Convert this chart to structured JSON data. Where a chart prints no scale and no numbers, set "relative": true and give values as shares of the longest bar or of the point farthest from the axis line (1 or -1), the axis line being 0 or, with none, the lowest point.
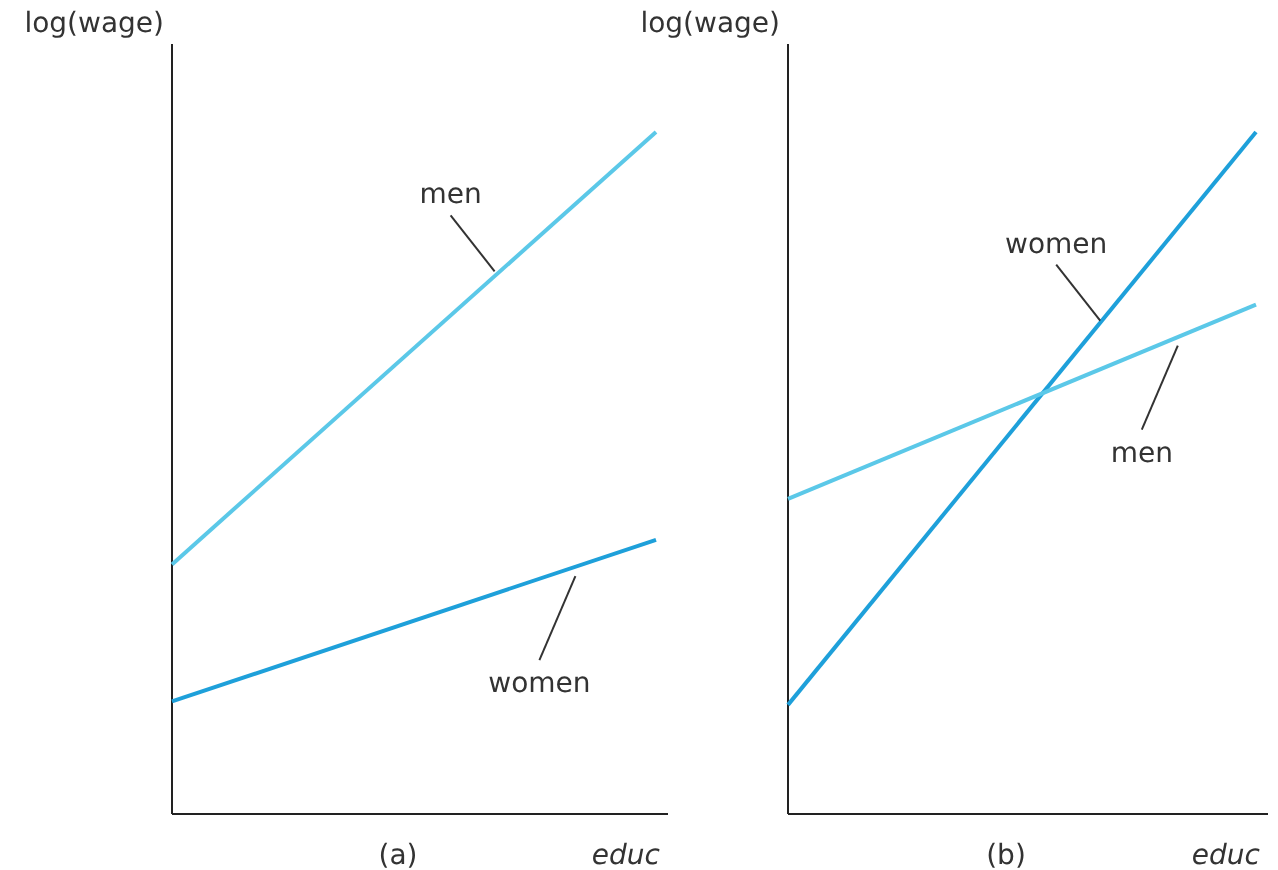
{
  "chart_data": [
    {
      "type": "line",
      "title": "(a)",
      "xlabel": "educ",
      "ylabel": "log(wage)",
      "relative": true,
      "categories": [
        null,
        null
      ],
      "series": [
        {
          "name": "men",
          "color": "#5bc8e8",
          "values": [
            0.366,
            1
          ]
        },
        {
          "name": "women",
          "color": "#1ea0da",
          "values": [
            0.165,
            0.402
          ]
        }
      ]
    },
    {
      "type": "line",
      "title": "(b)",
      "xlabel": "educ",
      "ylabel": "log(wage)",
      "relative": true,
      "categories": [
        null,
        null
      ],
      "series": [
        {
          "name": "women",
          "color": "#1ea0da",
          "values": [
            0.16,
            1
          ]
        },
        {
          "name": "men",
          "color": "#5bc8e8",
          "values": [
            0.462,
            0.747
          ]
        }
      ]
    }
  ]
}
